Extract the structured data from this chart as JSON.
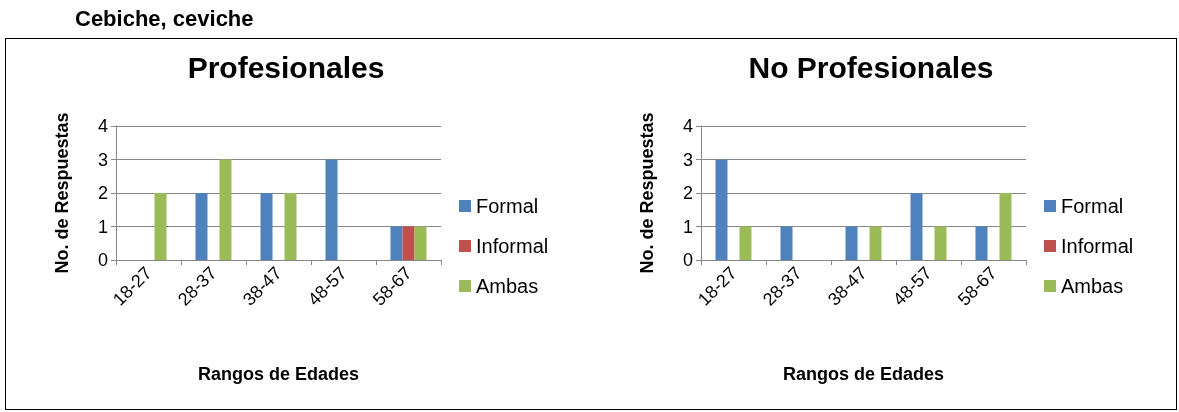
{
  "chart_data": [
    {
      "type": "bar",
      "title": "Profesionales",
      "xlabel": "Rangos de Edades",
      "ylabel": "No. de Respuestas",
      "annotations": [
        "Cebiche, ceviche"
      ],
      "categories": [
        "18-27",
        "28-37",
        "38-47",
        "48-57",
        "58-67"
      ],
      "series": [
        {
          "name": "Formal",
          "color": "#4f81bd",
          "values": [
            0,
            2,
            2,
            3,
            1
          ]
        },
        {
          "name": "Informal",
          "color": "#c0504d",
          "values": [
            0,
            0,
            0,
            0,
            1
          ]
        },
        {
          "name": "Ambas",
          "color": "#9bbb59",
          "values": [
            2,
            3,
            2,
            0,
            1
          ]
        }
      ],
      "ylim": [
        0,
        4
      ],
      "yticks": [
        0,
        1,
        2,
        3,
        4
      ],
      "grid": "y",
      "legend": "right"
    },
    {
      "type": "bar",
      "title": "No Profesionales",
      "xlabel": "Rangos de Edades",
      "ylabel": "No. de Respuestas",
      "categories": [
        "18-27",
        "28-37",
        "38-47",
        "48-57",
        "58-67"
      ],
      "series": [
        {
          "name": "Formal",
          "color": "#4f81bd",
          "values": [
            3,
            1,
            1,
            2,
            1
          ]
        },
        {
          "name": "Informal",
          "color": "#c0504d",
          "values": [
            0,
            0,
            0,
            0,
            0
          ]
        },
        {
          "name": "Ambas",
          "color": "#9bbb59",
          "values": [
            1,
            0,
            1,
            1,
            2
          ]
        }
      ],
      "ylim": [
        0,
        4
      ],
      "yticks": [
        0,
        1,
        2,
        3,
        4
      ],
      "grid": "y",
      "legend": "right"
    }
  ]
}
